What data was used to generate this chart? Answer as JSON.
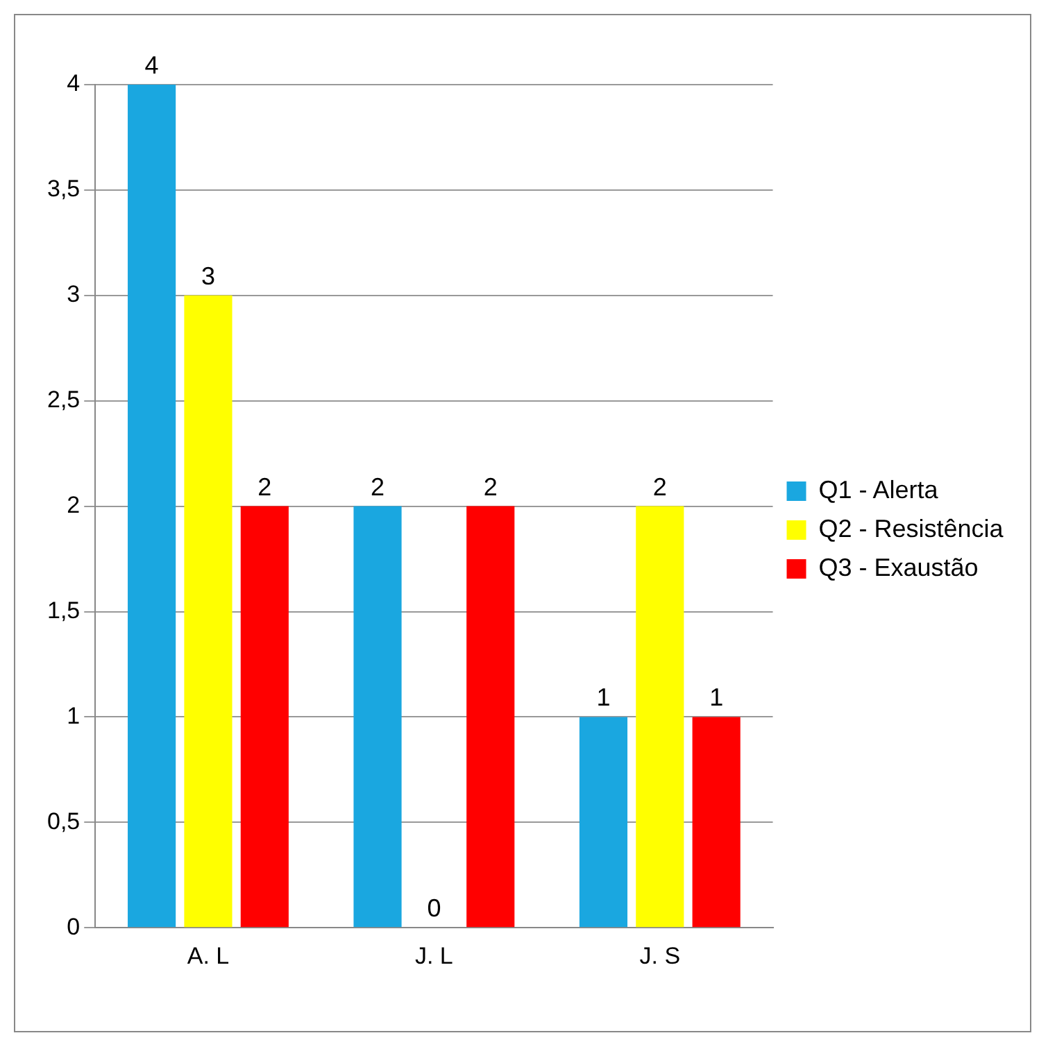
{
  "chart_data": {
    "type": "bar",
    "categories": [
      "A. L",
      "J. L",
      "J. S"
    ],
    "series": [
      {
        "name": "Q1 - Alerta",
        "color": "#1aa7e0",
        "values": [
          4,
          2,
          1
        ]
      },
      {
        "name": "Q2 - Resistência",
        "color": "#ffff00",
        "values": [
          3,
          0,
          2
        ]
      },
      {
        "name": "Q3 - Exaustão",
        "color": "#ff0000",
        "values": [
          2,
          2,
          1
        ]
      }
    ],
    "ylim": [
      0,
      4
    ],
    "yticks": [
      {
        "value": 0,
        "label": "0"
      },
      {
        "value": 0.5,
        "label": "0,5"
      },
      {
        "value": 1,
        "label": "1"
      },
      {
        "value": 1.5,
        "label": "1,5"
      },
      {
        "value": 2,
        "label": "2"
      },
      {
        "value": 2.5,
        "label": "2,5"
      },
      {
        "value": 3,
        "label": "3"
      },
      {
        "value": 3.5,
        "label": "3,5"
      },
      {
        "value": 4,
        "label": "4"
      }
    ],
    "grid": "y",
    "legend": "right",
    "data_labels": true
  }
}
